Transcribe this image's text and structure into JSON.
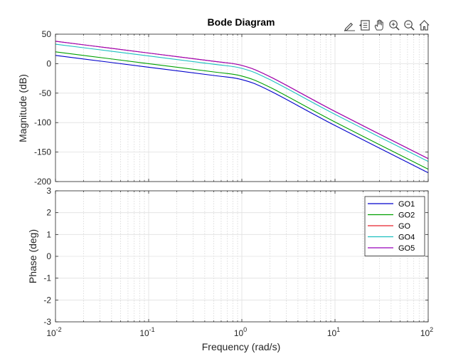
{
  "toolbar": {
    "icons": [
      "edit-pen-icon",
      "data-tips-icon",
      "pan-hand-icon",
      "zoom-in-icon",
      "zoom-out-icon",
      "home-icon"
    ]
  },
  "chart_data": {
    "type": "line",
    "title": "Bode Diagram",
    "xlabel": "Frequency  (rad/s)",
    "xscale": "log",
    "xlim": [
      0.01,
      100
    ],
    "x_ticks": [
      {
        "base": "10",
        "exp": "-2"
      },
      {
        "base": "10",
        "exp": "-1"
      },
      {
        "base": "10",
        "exp": "0"
      },
      {
        "base": "10",
        "exp": "1"
      },
      {
        "base": "10",
        "exp": "2"
      }
    ],
    "grid": true,
    "magnitude": {
      "ylabel": "Magnitude (dB)",
      "ylim": [
        -200,
        50
      ],
      "y_ticks": [
        "50",
        "0",
        "-50",
        "-100",
        "-150",
        "-200"
      ],
      "x": [
        0.01,
        0.1,
        0.5,
        1,
        2,
        10,
        100
      ],
      "series": [
        {
          "name": "GO1",
          "color": "#0000cc",
          "values": [
            14,
            -6,
            -20,
            -27,
            -46,
            -105,
            -185
          ]
        },
        {
          "name": "GO2",
          "color": "#00a000",
          "values": [
            20,
            0,
            -14,
            -21,
            -40,
            -99,
            -179
          ]
        },
        {
          "name": "GO",
          "color": "#e8202a",
          "values": [
            38,
            18,
            4,
            -3,
            -22,
            -81,
            -161
          ]
        },
        {
          "name": "GO4",
          "color": "#1cc0c0",
          "values": [
            33,
            13,
            -1,
            -8,
            -27,
            -86,
            -166
          ]
        },
        {
          "name": "GO5",
          "color": "#9900bb",
          "values": [
            38,
            18,
            4,
            -3,
            -22,
            -81,
            -161
          ]
        }
      ]
    },
    "phase": {
      "ylabel": "Phase (deg)",
      "ylim": [
        -3,
        3
      ],
      "y_ticks": [
        "3",
        "2",
        "1",
        "0",
        "-1",
        "-2",
        "-3"
      ]
    },
    "legend": {
      "placement": "top-right",
      "entries": [
        "GO1",
        "GO2",
        "GO",
        "GO4",
        "GO5"
      ]
    }
  }
}
